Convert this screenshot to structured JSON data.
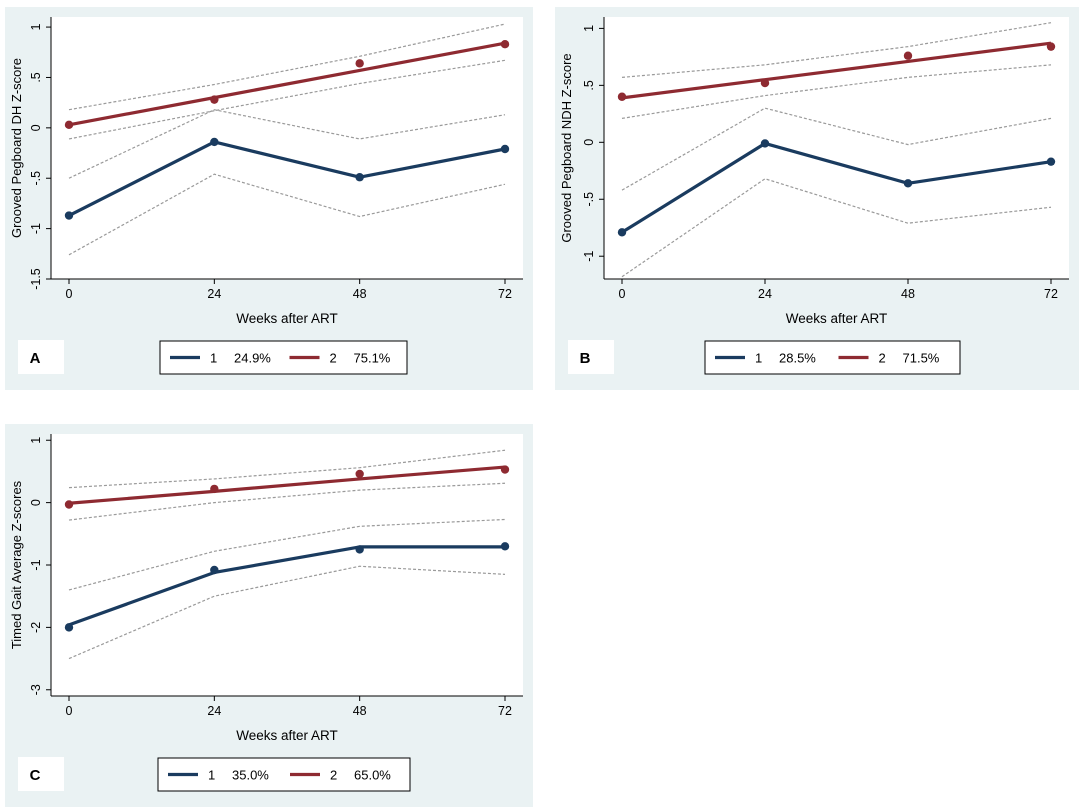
{
  "figure": {
    "colors": {
      "group1": "#1a3b5f",
      "group2": "#8e2a31",
      "ci": "#9a9a9a",
      "panel_bg": "#eaf2f3",
      "plot_bg": "#ffffff"
    }
  },
  "chart_data": [
    {
      "type": "line",
      "panel_label": "A",
      "title": "",
      "xlabel": "Weeks after ART",
      "ylabel": "Grooved Pegboard DH Z-score",
      "x": [
        0,
        24,
        48,
        72
      ],
      "xticks": [
        "0",
        "24",
        "48",
        "72"
      ],
      "ylim": [
        -1.5,
        1.1
      ],
      "yticks": [
        -1.5,
        -1,
        -0.5,
        0,
        0.5,
        1
      ],
      "ytick_labels": [
        "-1.5",
        "-1",
        "-.5",
        "0",
        ".5",
        "1"
      ],
      "series": [
        {
          "name": "1",
          "share": "24.9%",
          "color": "#1a3b5f",
          "observed": [
            -0.87,
            -0.14,
            -0.49,
            -0.21
          ],
          "fitted": [
            -0.87,
            -0.14,
            -0.49,
            -0.21
          ],
          "ci_lower": [
            -1.26,
            -0.46,
            -0.88,
            -0.56
          ],
          "ci_upper": [
            -0.5,
            0.18,
            -0.11,
            0.13
          ]
        },
        {
          "name": "2",
          "share": "75.1%",
          "color": "#8e2a31",
          "observed": [
            0.03,
            0.28,
            0.64,
            0.83
          ],
          "fitted": [
            0.03,
            0.3,
            0.57,
            0.84
          ],
          "ci_lower": [
            -0.11,
            0.17,
            0.44,
            0.67
          ],
          "ci_upper": [
            0.18,
            0.43,
            0.71,
            1.03
          ]
        }
      ]
    },
    {
      "type": "line",
      "panel_label": "B",
      "title": "",
      "xlabel": "Weeks after ART",
      "ylabel": "Grooved Pegboard NDH Z-score",
      "x": [
        0,
        24,
        48,
        72
      ],
      "xticks": [
        "0",
        "24",
        "48",
        "72"
      ],
      "ylim": [
        -1.2,
        1.1
      ],
      "yticks": [
        -1,
        -0.5,
        0,
        0.5,
        1
      ],
      "ytick_labels": [
        "-1",
        "-.5",
        "0",
        ".5",
        "1"
      ],
      "series": [
        {
          "name": "1",
          "share": "28.5%",
          "color": "#1a3b5f",
          "observed": [
            -0.79,
            -0.01,
            -0.36,
            -0.17
          ],
          "fitted": [
            -0.79,
            -0.01,
            -0.36,
            -0.17
          ],
          "ci_lower": [
            -1.18,
            -0.32,
            -0.71,
            -0.57
          ],
          "ci_upper": [
            -0.42,
            0.3,
            -0.02,
            0.21
          ]
        },
        {
          "name": "2",
          "share": "71.5%",
          "color": "#8e2a31",
          "observed": [
            0.4,
            0.52,
            0.76,
            0.84
          ],
          "fitted": [
            0.39,
            0.55,
            0.71,
            0.87
          ],
          "ci_lower": [
            0.21,
            0.41,
            0.57,
            0.68
          ],
          "ci_upper": [
            0.57,
            0.68,
            0.84,
            1.05
          ]
        }
      ]
    },
    {
      "type": "line",
      "panel_label": "C",
      "title": "",
      "xlabel": "Weeks after ART",
      "ylabel": "Timed Gait Average Z-scores",
      "x": [
        0,
        24,
        48,
        72
      ],
      "xticks": [
        "0",
        "24",
        "48",
        "72"
      ],
      "ylim": [
        -3.1,
        1.1
      ],
      "yticks": [
        -3,
        -2,
        -1,
        0,
        1
      ],
      "ytick_labels": [
        "-3",
        "-2",
        "-1",
        "0",
        "1"
      ],
      "series": [
        {
          "name": "1",
          "share": "35.0%",
          "color": "#1a3b5f",
          "observed": [
            -2.0,
            -1.08,
            -0.75,
            -0.7
          ],
          "fitted": [
            -1.96,
            -1.12,
            -0.71,
            -0.71
          ],
          "ci_lower": [
            -2.5,
            -1.5,
            -1.02,
            -1.15
          ],
          "ci_upper": [
            -1.4,
            -0.78,
            -0.38,
            -0.27
          ]
        },
        {
          "name": "2",
          "share": "65.0%",
          "color": "#8e2a31",
          "observed": [
            -0.03,
            0.22,
            0.46,
            0.53
          ],
          "fitted": [
            -0.01,
            0.18,
            0.38,
            0.57
          ],
          "ci_lower": [
            -0.28,
            0.0,
            0.2,
            0.31
          ],
          "ci_upper": [
            0.24,
            0.38,
            0.56,
            0.84
          ]
        }
      ]
    }
  ]
}
